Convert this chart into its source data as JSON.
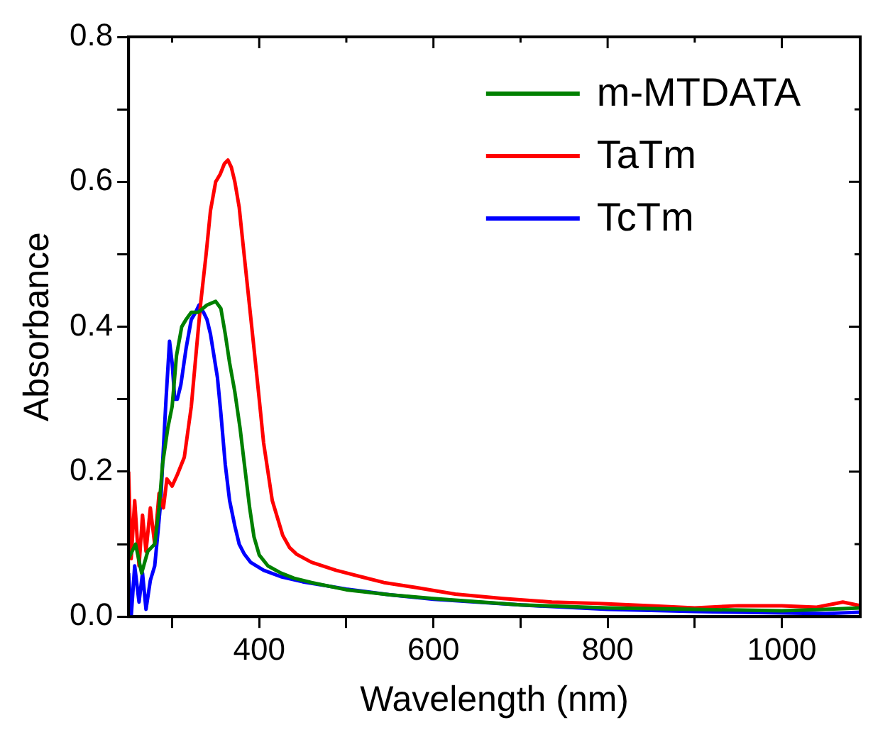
{
  "chart_data": {
    "type": "line",
    "xlabel": "Wavelength (nm)",
    "ylabel": "Absorbance",
    "xlim": [
      250,
      1090
    ],
    "ylim": [
      0,
      0.8
    ],
    "xticks": [
      {
        "value": 300,
        "label": null
      },
      400,
      {
        "value": 500,
        "label": null
      },
      600,
      {
        "value": 700,
        "label": null
      },
      800,
      {
        "value": 900,
        "label": null
      },
      1000
    ],
    "yticks": [
      {
        "value": 0,
        "label": "0.0"
      },
      {
        "value": 0.1,
        "label": null
      },
      0.2,
      {
        "value": 0.3,
        "label": null
      },
      0.4,
      {
        "value": 0.5,
        "label": null
      },
      0.6,
      {
        "value": 0.7,
        "label": null
      },
      0.8
    ],
    "legend": "top right",
    "marker": "none",
    "line_style": "solid",
    "grid": false,
    "series": [
      {
        "name": "m-MTDATA",
        "color": "#008000",
        "x": [
          250,
          258,
          265,
          272,
          280,
          285,
          289,
          295,
          300,
          305,
          311,
          316,
          322,
          330,
          340,
          350,
          356,
          361,
          366,
          372,
          378,
          383,
          389,
          394,
          400,
          410,
          425,
          440,
          460,
          500,
          550,
          600,
          700,
          800,
          900,
          1000,
          1050,
          1090
        ],
        "values": [
          0.08,
          0.1,
          0.06,
          0.09,
          0.1,
          0.15,
          0.21,
          0.26,
          0.29,
          0.36,
          0.4,
          0.41,
          0.42,
          0.42,
          0.43,
          0.435,
          0.425,
          0.39,
          0.35,
          0.31,
          0.26,
          0.21,
          0.15,
          0.11,
          0.085,
          0.07,
          0.06,
          0.053,
          0.047,
          0.037,
          0.03,
          0.025,
          0.016,
          0.012,
          0.01,
          0.008,
          0.01,
          0.012
        ]
      },
      {
        "name": "TaTm",
        "color": "#ff0000",
        "x": [
          250,
          253,
          257,
          262,
          266,
          270,
          275,
          280,
          285,
          290,
          294,
          300,
          306,
          314,
          322,
          328,
          333,
          339,
          344,
          350,
          355,
          360,
          364,
          368,
          372,
          377,
          380,
          387,
          394,
          400,
          405,
          415,
          427,
          435,
          443,
          460,
          488,
          520,
          543,
          580,
          625,
          680,
          736,
          790,
          850,
          900,
          950,
          1000,
          1040,
          1070,
          1090
        ],
        "values": [
          0.2,
          0.08,
          0.16,
          0.07,
          0.14,
          0.09,
          0.15,
          0.1,
          0.17,
          0.15,
          0.19,
          0.18,
          0.196,
          0.22,
          0.29,
          0.37,
          0.435,
          0.5,
          0.56,
          0.6,
          0.61,
          0.625,
          0.63,
          0.62,
          0.6,
          0.565,
          0.53,
          0.45,
          0.37,
          0.3,
          0.24,
          0.16,
          0.112,
          0.095,
          0.086,
          0.075,
          0.064,
          0.054,
          0.047,
          0.04,
          0.031,
          0.025,
          0.02,
          0.018,
          0.015,
          0.012,
          0.015,
          0.015,
          0.013,
          0.02,
          0.015
        ]
      },
      {
        "name": "TcTm",
        "color": "#0000ff",
        "x": [
          250,
          253,
          257,
          262,
          266,
          270,
          275,
          280,
          284,
          287,
          289,
          293,
          297,
          300,
          303,
          306,
          310,
          316,
          322,
          327,
          331,
          336,
          340,
          344,
          348,
          352,
          356,
          361,
          366,
          372,
          377,
          383,
          390,
          405,
          425,
          450,
          500,
          550,
          600,
          700,
          800,
          900,
          1000,
          1050,
          1090
        ],
        "values": [
          0.06,
          0.0,
          0.07,
          0.02,
          0.06,
          0.01,
          0.05,
          0.07,
          0.12,
          0.16,
          0.21,
          0.3,
          0.38,
          0.35,
          0.3,
          0.3,
          0.32,
          0.37,
          0.41,
          0.42,
          0.43,
          0.42,
          0.41,
          0.39,
          0.36,
          0.33,
          0.28,
          0.21,
          0.16,
          0.125,
          0.1,
          0.086,
          0.075,
          0.064,
          0.055,
          0.048,
          0.038,
          0.03,
          0.024,
          0.016,
          0.01,
          0.007,
          0.005,
          0.004,
          0.006
        ]
      }
    ]
  }
}
